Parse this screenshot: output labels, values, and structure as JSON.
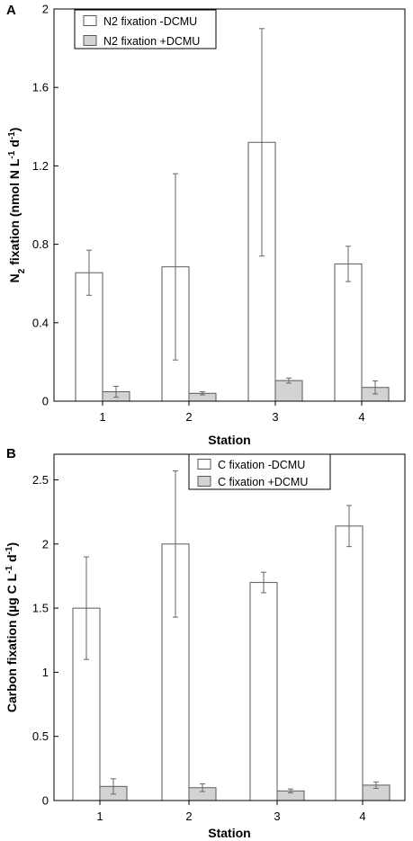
{
  "colors": {
    "bar_minus": "#ffffff",
    "bar_plus": "#d3d3d3",
    "bar_stroke": "#5a5a5a",
    "error_bar": "#666666",
    "axis": "#000000"
  },
  "chart_data": [
    {
      "type": "bar",
      "panel_label": "A",
      "xlabel": "Station",
      "ylabel_parts": [
        "N",
        "2",
        " fixation (nmol N L",
        "-1",
        " d",
        "-1",
        ")"
      ],
      "categories": [
        "1",
        "2",
        "3",
        "4"
      ],
      "ylim": [
        0,
        2
      ],
      "yticks": [
        0,
        0.4,
        0.8,
        1.2,
        1.6,
        2
      ],
      "ytick_labels": [
        "0",
        "0.4",
        "0.8",
        "1.2",
        "1.6",
        "2"
      ],
      "legend_position": "top-left",
      "series": [
        {
          "name": "N2 fixation -DCMU",
          "values": [
            0.655,
            0.685,
            1.32,
            0.7
          ],
          "errors": [
            0.115,
            0.475,
            0.58,
            0.09
          ]
        },
        {
          "name": "N2 fixation +DCMU",
          "values": [
            0.048,
            0.04,
            0.105,
            0.07
          ],
          "errors": [
            0.028,
            0.008,
            0.013,
            0.033
          ]
        }
      ]
    },
    {
      "type": "bar",
      "panel_label": "B",
      "xlabel": "Station",
      "ylabel_parts": [
        "Carbon fixation (µg C L",
        "-1",
        " d",
        "-1",
        ")"
      ],
      "categories": [
        "1",
        "2",
        "3",
        "4"
      ],
      "ylim": [
        0,
        2.7
      ],
      "yticks": [
        0,
        0.5,
        1,
        1.5,
        2,
        2.5
      ],
      "ytick_labels": [
        "0",
        "0.5",
        "1",
        "1.5",
        "2",
        "2.5"
      ],
      "legend_position": "top-center",
      "series": [
        {
          "name": "C fixation -DCMU",
          "values": [
            1.5,
            2.0,
            1.7,
            2.14
          ],
          "errors": [
            0.4,
            0.57,
            0.08,
            0.16
          ]
        },
        {
          "name": "C fixation +DCMU",
          "values": [
            0.11,
            0.1,
            0.075,
            0.12
          ],
          "errors": [
            0.06,
            0.03,
            0.015,
            0.025
          ]
        }
      ]
    }
  ]
}
